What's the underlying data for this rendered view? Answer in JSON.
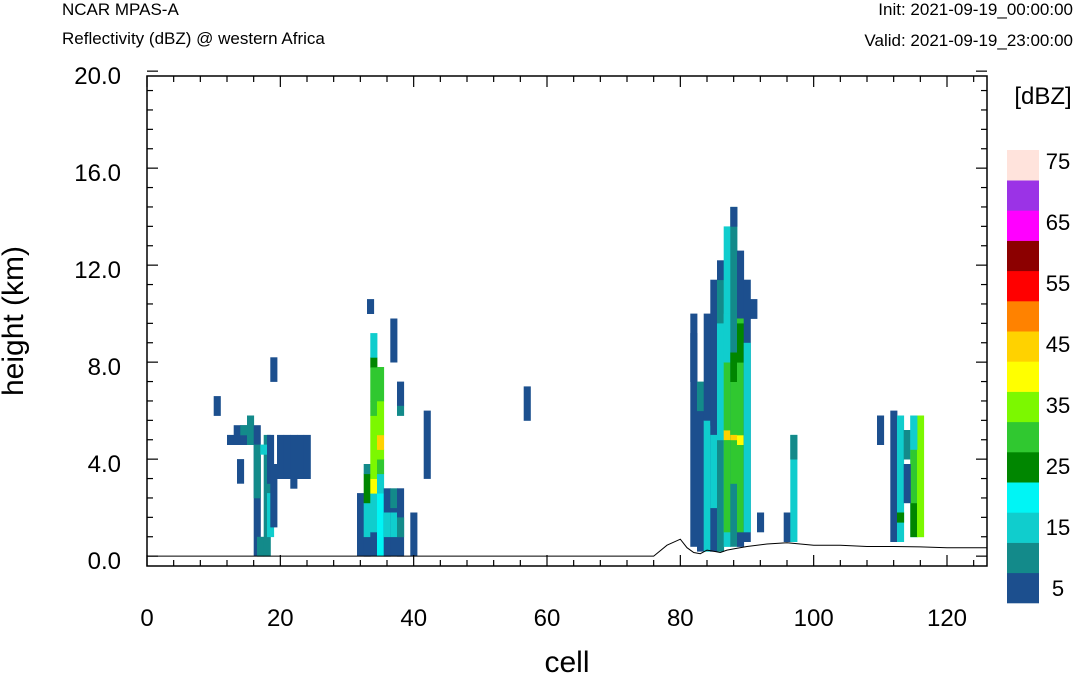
{
  "header": {
    "model": "NCAR MPAS-A",
    "subtitle": "Reflectivity (dBZ) @ western Africa",
    "init": "Init: 2021-09-19_00:00:00",
    "valid": "Valid: 2021-09-19_23:00:00"
  },
  "chart_data": {
    "type": "heatmap",
    "title": "Reflectivity (dBZ) @ western Africa",
    "xlabel": "cell",
    "ylabel": "height (km)",
    "xlim": [
      0,
      126
    ],
    "ylim": [
      0,
      20
    ],
    "x_ticks": [
      "0",
      "20",
      "40",
      "60",
      "80",
      "100",
      "120"
    ],
    "y_ticks": [
      "0.0",
      "4.0",
      "8.0",
      "12.0",
      "16.0",
      "20.0"
    ],
    "colorbar": {
      "unit": "[dBZ]",
      "levels": [
        5,
        10,
        15,
        20,
        25,
        30,
        35,
        40,
        45,
        50,
        55,
        60,
        65,
        70,
        75
      ],
      "labels": [
        "5",
        "15",
        "25",
        "35",
        "45",
        "55",
        "65",
        "75"
      ],
      "colors": [
        "#1c4f8e",
        "#138a8a",
        "#10cdcd",
        "#00f5f5",
        "#008600",
        "#30c830",
        "#7cf800",
        "#ffff00",
        "#ffd200",
        "#ff8200",
        "#ff0000",
        "#8c0000",
        "#ff00ff",
        "#9b33e6",
        "#ffe3dc"
      ]
    },
    "cell_width_units": 1,
    "cell_height_km": 0.4,
    "cells": [
      [
        10.5,
        5.8,
        6.6,
        5
      ],
      [
        12.5,
        4.6,
        5.0,
        5
      ],
      [
        13.5,
        4.6,
        5.4,
        5
      ],
      [
        14.5,
        4.6,
        5.4,
        5
      ],
      [
        15.5,
        4.6,
        5.8,
        10
      ],
      [
        14.5,
        5.0,
        5.4,
        10
      ],
      [
        16.5,
        0,
        5.4,
        5
      ],
      [
        16.5,
        2.4,
        4.6,
        10
      ],
      [
        17,
        0,
        0.8,
        10
      ],
      [
        18,
        0,
        5.0,
        10
      ],
      [
        17.5,
        4.2,
        4.6,
        15
      ],
      [
        18.5,
        0.8,
        2.6,
        15
      ],
      [
        18.5,
        3.0,
        5.0,
        5
      ],
      [
        19,
        1.2,
        3.8,
        5
      ],
      [
        19,
        7.2,
        8.2,
        5
      ],
      [
        20,
        3.2,
        5.0,
        5
      ],
      [
        21,
        3.2,
        5.0,
        5
      ],
      [
        22,
        3.2,
        5.0,
        5
      ],
      [
        23,
        3.2,
        5.0,
        5
      ],
      [
        24,
        3.2,
        5.0,
        5
      ],
      [
        22,
        2.8,
        3.2,
        5
      ],
      [
        14,
        3.0,
        4.0,
        5
      ],
      [
        32,
        0,
        2.6,
        5
      ],
      [
        33,
        0,
        0.8,
        5
      ],
      [
        33,
        0.8,
        2.2,
        15
      ],
      [
        33,
        2.2,
        3.4,
        25
      ],
      [
        33,
        3.4,
        3.8,
        10
      ],
      [
        34,
        0,
        1.0,
        5
      ],
      [
        34,
        1.0,
        2.6,
        15
      ],
      [
        34,
        2.6,
        3.2,
        40
      ],
      [
        34,
        3.2,
        5.8,
        35
      ],
      [
        34,
        5.8,
        6.4,
        30
      ],
      [
        34,
        6.4,
        7.8,
        30
      ],
      [
        34,
        7.8,
        8.2,
        25
      ],
      [
        34,
        8.2,
        9.2,
        15
      ],
      [
        33.5,
        10.0,
        10.6,
        5
      ],
      [
        35,
        0,
        2.6,
        20
      ],
      [
        35,
        2.6,
        3.4,
        15
      ],
      [
        35,
        3.4,
        4.0,
        30
      ],
      [
        35,
        4.0,
        4.4,
        35
      ],
      [
        35,
        4.4,
        5.0,
        45
      ],
      [
        35,
        5.0,
        6.4,
        35
      ],
      [
        35,
        6.4,
        7.8,
        30
      ],
      [
        36,
        0,
        2.8,
        5
      ],
      [
        36,
        0.8,
        1.8,
        15
      ],
      [
        37,
        0,
        2.6,
        5
      ],
      [
        37,
        0.8,
        1.8,
        15
      ],
      [
        37,
        2.0,
        2.8,
        10
      ],
      [
        38,
        0,
        2.8,
        5
      ],
      [
        38,
        0.8,
        1.6,
        10
      ],
      [
        37,
        8.0,
        9.8,
        5
      ],
      [
        38,
        6.2,
        7.2,
        5
      ],
      [
        38,
        5.8,
        6.2,
        10
      ],
      [
        40,
        0,
        1.8,
        5
      ],
      [
        42,
        3.2,
        6.0,
        5
      ],
      [
        57,
        5.6,
        7.0,
        5
      ],
      [
        82,
        0.4,
        10.0,
        5
      ],
      [
        82,
        7.2,
        9.2,
        5
      ],
      [
        83,
        0.2,
        6.0,
        5
      ],
      [
        83,
        6.0,
        7.2,
        10
      ],
      [
        84,
        0.2,
        5.6,
        15
      ],
      [
        84,
        5.6,
        10.0,
        5
      ],
      [
        85,
        0.2,
        7.2,
        5
      ],
      [
        85,
        2.0,
        5.0,
        15
      ],
      [
        85,
        5.4,
        11.4,
        5
      ],
      [
        86,
        0.2,
        11.4,
        10
      ],
      [
        86,
        4.8,
        9.6,
        15
      ],
      [
        86,
        11.4,
        12.2,
        5
      ],
      [
        87,
        0.4,
        13.6,
        15
      ],
      [
        87,
        1.0,
        4.8,
        30
      ],
      [
        87,
        4.8,
        5.2,
        45
      ],
      [
        87,
        5.2,
        8.0,
        30
      ],
      [
        87,
        8.0,
        10.0,
        15
      ],
      [
        88,
        0.4,
        14.4,
        10
      ],
      [
        88,
        3.0,
        7.4,
        30
      ],
      [
        88,
        4.8,
        5.0,
        45
      ],
      [
        88,
        7.2,
        8.4,
        25
      ],
      [
        88,
        13.6,
        14.4,
        5
      ],
      [
        89,
        0.4,
        12.6,
        5
      ],
      [
        89,
        1.0,
        4.6,
        30
      ],
      [
        89,
        4.6,
        5.0,
        40
      ],
      [
        89,
        5.0,
        9.8,
        30
      ],
      [
        89,
        8.0,
        9.6,
        25
      ],
      [
        90,
        0.6,
        11.4,
        5
      ],
      [
        90,
        1.0,
        8.8,
        15
      ],
      [
        91,
        9.8,
        10.6,
        5
      ],
      [
        92,
        1.0,
        1.8,
        5
      ],
      [
        96,
        0.6,
        1.8,
        5
      ],
      [
        97,
        0.6,
        5.0,
        15
      ],
      [
        97,
        4.0,
        5.0,
        10
      ],
      [
        110,
        4.6,
        5.8,
        5
      ],
      [
        112,
        0.6,
        6.0,
        5
      ],
      [
        113,
        0.6,
        5.8,
        15
      ],
      [
        113,
        1.4,
        1.8,
        25
      ],
      [
        114,
        4.0,
        5.2,
        10
      ],
      [
        115,
        0.8,
        5.8,
        15
      ],
      [
        115,
        0.8,
        2.2,
        25
      ],
      [
        115,
        2.2,
        4.4,
        30
      ],
      [
        116,
        0.8,
        5.8,
        35
      ],
      [
        115,
        4.4,
        5.8,
        15
      ],
      [
        114,
        2.2,
        3.8,
        5
      ]
    ],
    "terrain": [
      [
        0,
        0
      ],
      [
        76,
        0
      ],
      [
        78,
        0.45
      ],
      [
        80,
        0.7
      ],
      [
        81,
        0.35
      ],
      [
        82,
        0.15
      ],
      [
        83,
        0.1
      ],
      [
        84,
        0.25
      ],
      [
        85,
        0.2
      ],
      [
        86,
        0.15
      ],
      [
        87,
        0.25
      ],
      [
        88,
        0.3
      ],
      [
        90,
        0.4
      ],
      [
        93,
        0.5
      ],
      [
        96,
        0.55
      ],
      [
        98,
        0.5
      ],
      [
        100,
        0.45
      ],
      [
        104,
        0.45
      ],
      [
        108,
        0.4
      ],
      [
        112,
        0.4
      ],
      [
        116,
        0.38
      ],
      [
        120,
        0.35
      ],
      [
        126,
        0.35
      ]
    ]
  }
}
